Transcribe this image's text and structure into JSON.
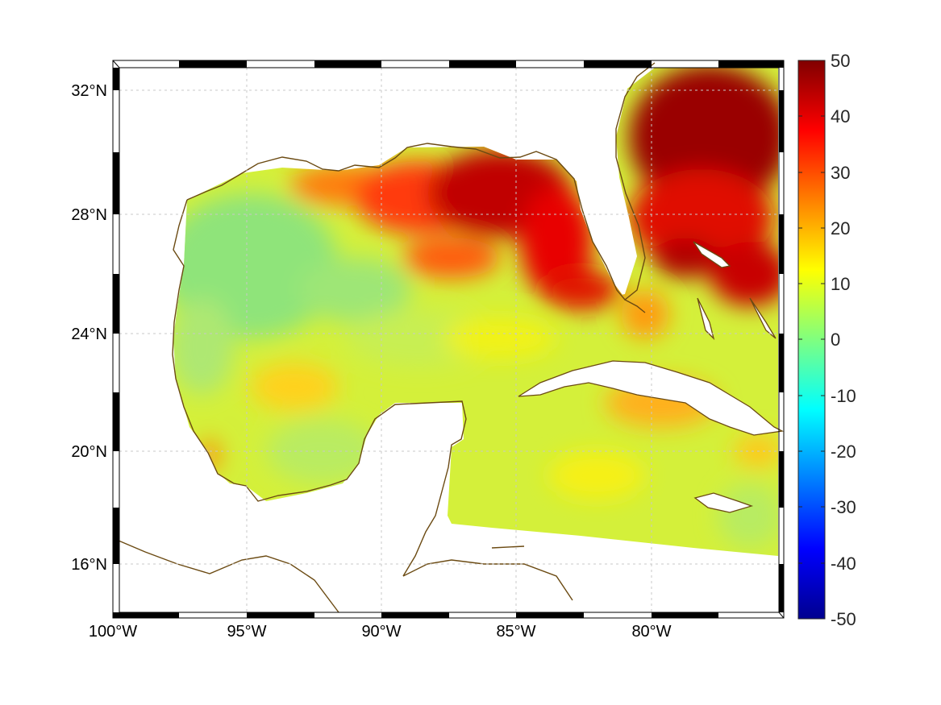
{
  "map": {
    "lon_ticks": [
      {
        "value": -100,
        "label": "100°W"
      },
      {
        "value": -95,
        "label": "95°W"
      },
      {
        "value": -90,
        "label": "90°W"
      },
      {
        "value": -85,
        "label": "85°W"
      },
      {
        "value": -80,
        "label": "80°W"
      }
    ],
    "lat_ticks": [
      {
        "value": 32,
        "label": "32°N"
      },
      {
        "value": 28,
        "label": "28°N"
      },
      {
        "value": 24,
        "label": "24°N"
      },
      {
        "value": 20,
        "label": "20°N"
      },
      {
        "value": 16,
        "label": "16°N"
      }
    ],
    "lon_range": [
      -100,
      -75
    ],
    "lat_range": [
      14.3,
      33
    ],
    "grid": true,
    "coastline_color": "#6b4a12",
    "colorbar": {
      "min": -50,
      "max": 50,
      "colormap": "jet",
      "tick_labels": [
        "50",
        "40",
        "30",
        "20",
        "10",
        "0",
        "-10",
        "-20",
        "-30",
        "-40",
        "-50"
      ]
    }
  }
}
